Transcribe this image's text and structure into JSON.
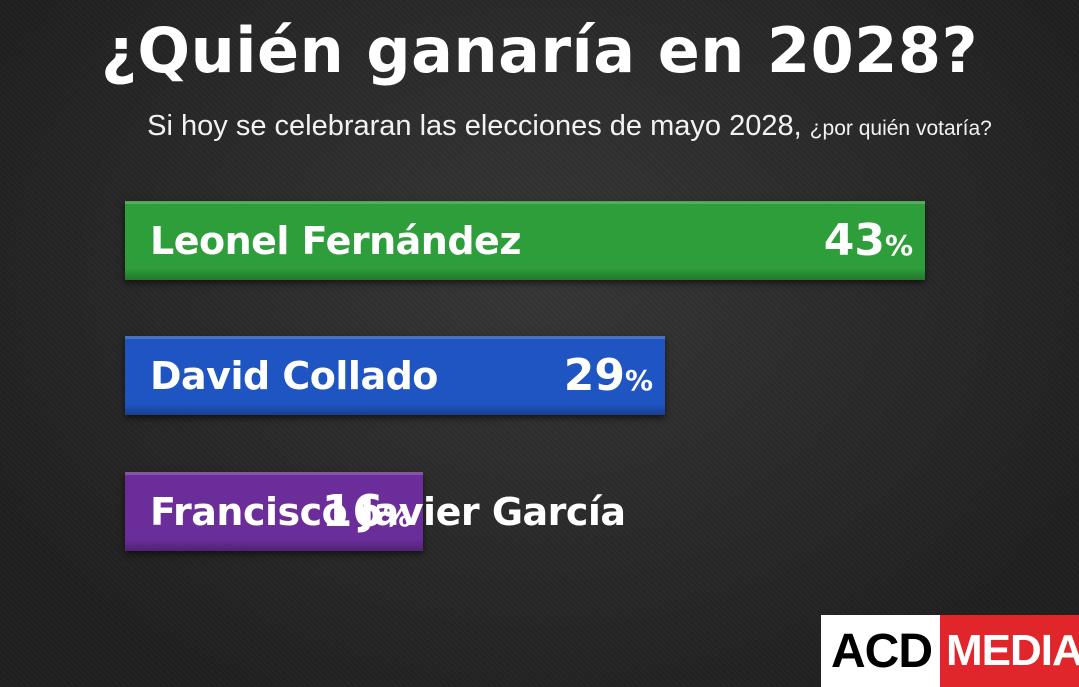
{
  "title": "¿Quién ganaría en 2028?",
  "subtitle": {
    "main": "Si hoy se celebraran las elecciones de mayo 2028,",
    "small": "¿por quién votaría?"
  },
  "chart_data": {
    "type": "bar",
    "orientation": "horizontal",
    "categories": [
      "Leonel Fernández",
      "David Collado",
      "Francisco Javier García"
    ],
    "values": [
      43,
      29,
      16
    ],
    "value_labels": [
      "43",
      "29",
      "16"
    ],
    "unit": "%",
    "colors": [
      "#2e9e3a",
      "#1f55c2",
      "#6b2d9a"
    ],
    "title": "¿Quién ganaría en 2028?"
  },
  "logo": {
    "left": "ACD",
    "right": "MEDIA",
    "left_bg": "#ffffff",
    "right_bg": "#e0262b"
  }
}
